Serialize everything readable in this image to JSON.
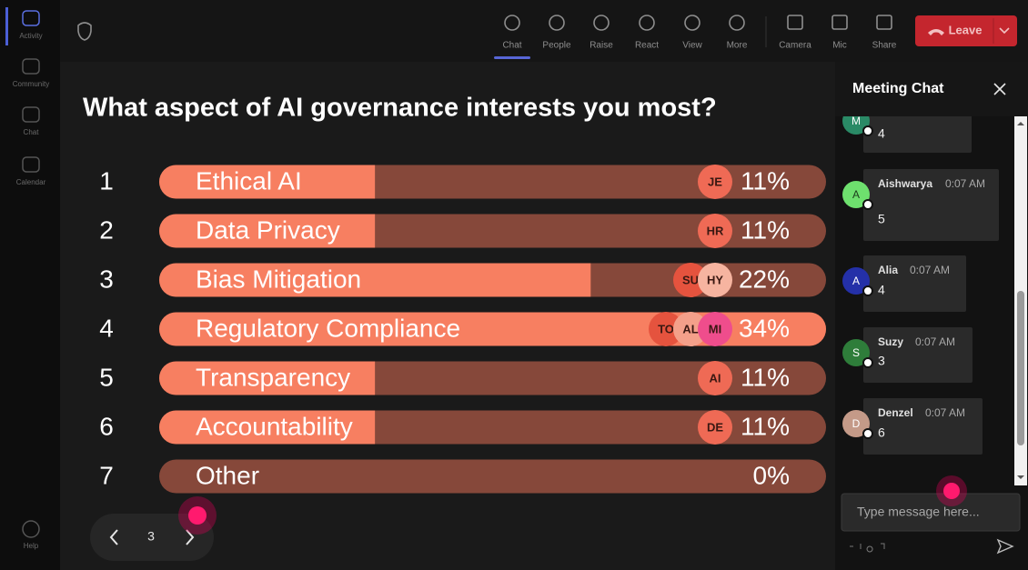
{
  "sidebar": {
    "items": [
      "Activity",
      "Community",
      "Chat",
      "Calendar"
    ],
    "help": "Help"
  },
  "toolbar": {
    "items": [
      "Chat",
      "People",
      "Raise",
      "React",
      "View",
      "More"
    ],
    "media": [
      "Camera",
      "Mic",
      "Share"
    ],
    "leave": "Leave"
  },
  "poll": {
    "question": "What aspect of AI governance interests you most?",
    "options": [
      {
        "rank": "1",
        "label": "Ethical AI",
        "value": 11,
        "value_label": "11%",
        "voters": [
          "JE"
        ]
      },
      {
        "rank": "2",
        "label": "Data Privacy",
        "value": 11,
        "value_label": "11%",
        "voters": [
          "HR"
        ]
      },
      {
        "rank": "3",
        "label": "Bias Mitigation",
        "value": 22,
        "value_label": "22%",
        "voters": [
          "SU",
          "HY"
        ]
      },
      {
        "rank": "4",
        "label": "Regulatory Compliance",
        "value": 34,
        "value_label": "34%",
        "voters": [
          "TO",
          "AL",
          "MI"
        ]
      },
      {
        "rank": "5",
        "label": "Transparency",
        "value": 11,
        "value_label": "11%",
        "voters": [
          "AI"
        ]
      },
      {
        "rank": "6",
        "label": "Accountability",
        "value": 11,
        "value_label": "11%",
        "voters": [
          "DE"
        ]
      },
      {
        "rank": "7",
        "label": "Other",
        "value": 0,
        "value_label": "0%",
        "voters": []
      }
    ],
    "page": "3"
  },
  "chat": {
    "title": "Meeting Chat",
    "messages": [
      {
        "initial": "M",
        "text": "4"
      },
      {
        "initial": "A",
        "name": "Aishwarya",
        "time": "0:07 AM",
        "text": "5"
      },
      {
        "initial": "A",
        "name": "Alia",
        "time": "0:07 AM",
        "text": "4"
      },
      {
        "initial": "S",
        "name": "Suzy",
        "time": "0:07 AM",
        "text": "3"
      },
      {
        "initial": "D",
        "name": "Denzel",
        "time": "0:07 AM",
        "text": "6"
      }
    ],
    "placeholder": "Type message here..."
  }
}
